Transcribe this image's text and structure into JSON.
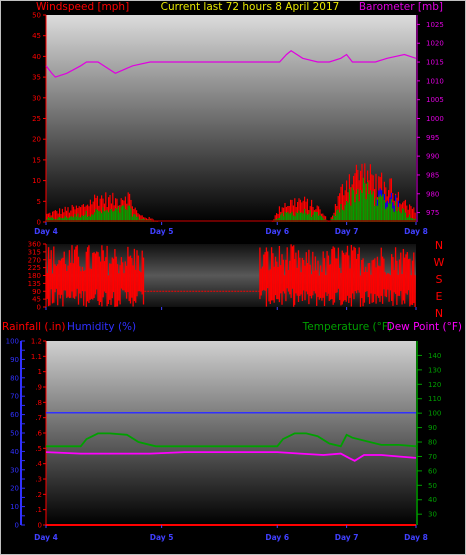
{
  "header": {
    "wind_label": "Windspeed [mph]",
    "title": "Current last 72 hours 8 April 2017",
    "baro_label": "Barometer [mb]"
  },
  "panel3_labels": {
    "rain": "Rainfall (.in)",
    "humidity": "Humidity (%)",
    "temp": "Temperature (°F)",
    "dew": "Dew Point (°F)"
  },
  "colors": {
    "frame": "#c0c0c0",
    "wind": "#ff0000",
    "windfill": "#8b0000",
    "gust_green": "#00a000",
    "blue": "#0000ff",
    "baro": "#e000e0",
    "title": "#e8e800",
    "temp": "#00a000",
    "dewpoint": "#ff00ff",
    "humidity": "#3030ff",
    "dir_text": "#ff0000"
  },
  "chart_data": [
    {
      "type": "area",
      "name": "wind-barometer",
      "title": "Current last 72 hours 8 April 2017",
      "ylabel_left": "Windspeed [mph]",
      "ylabel_right": "Barometer [mb]",
      "x_ticks": [
        "Day 4",
        "Day 5",
        "Day 6",
        "Day 7",
        "Day 8"
      ],
      "x_tick_pos": [
        0,
        1,
        2,
        2.6,
        3.2
      ],
      "ylim_left": [
        0,
        50
      ],
      "y_ticks_left": [
        0,
        5,
        10,
        15,
        20,
        25,
        30,
        35,
        40,
        45,
        50
      ],
      "ylim_right": [
        972.5,
        1027.5
      ],
      "y_ticks_right": [
        975,
        980,
        985,
        990,
        995,
        1000,
        1005,
        1010,
        1015,
        1020,
        1025
      ],
      "barometer": {
        "x": [
          0,
          0.05,
          0.08,
          0.18,
          0.3,
          0.35,
          0.45,
          0.6,
          0.75,
          0.9,
          1.2,
          1.5,
          1.75,
          2.02,
          2.08,
          2.12,
          2.22,
          2.35,
          2.45,
          2.55,
          2.6,
          2.65,
          2.75,
          2.85,
          2.95,
          3.1,
          3.2
        ],
        "values": [
          1014,
          1012,
          1011,
          1012,
          1014,
          1015,
          1015,
          1012,
          1014,
          1015,
          1015,
          1015,
          1015,
          1015,
          1017,
          1018,
          1016,
          1015,
          1015,
          1016,
          1017,
          1015,
          1015,
          1015,
          1016,
          1017,
          1016
        ]
      },
      "wind_peak": {
        "x": [
          0,
          0.1,
          0.3,
          0.45,
          0.6,
          0.7,
          0.8,
          1.0,
          1.5,
          1.95,
          2.05,
          2.2,
          2.35,
          2.45,
          2.6,
          2.65,
          2.75,
          2.85,
          2.95,
          3.05,
          3.12,
          3.2
        ],
        "values": [
          2,
          3,
          4,
          7,
          6,
          8,
          2,
          0,
          0,
          0,
          5,
          6,
          4,
          0,
          12,
          13,
          14,
          11,
          10,
          8,
          5,
          3
        ]
      },
      "wind_avg": {
        "x": [
          0,
          0.1,
          0.3,
          0.45,
          0.6,
          0.7,
          0.8,
          1.0,
          1.5,
          1.95,
          2.05,
          2.2,
          2.35,
          2.45,
          2.6,
          2.65,
          2.75,
          2.85,
          2.95,
          3.05,
          3.12,
          3.2
        ],
        "values": [
          1,
          1,
          2,
          3,
          3,
          4,
          1,
          0,
          0,
          0,
          2,
          3,
          2,
          0,
          6,
          8,
          9,
          7,
          6,
          4,
          2,
          1
        ]
      }
    },
    {
      "type": "bar",
      "name": "wind-direction",
      "x_ticks": [
        "Day 4",
        "Day 5",
        "Day 6",
        "Day 7",
        "Day 8"
      ],
      "ylim": [
        0,
        360
      ],
      "y_ticks": [
        0,
        45,
        90,
        135,
        180,
        225,
        270,
        315,
        360
      ],
      "direction_labels": [
        "N",
        "W",
        "S",
        "E",
        "N"
      ],
      "segments": [
        {
          "x_start": 0,
          "x_end": 0.85,
          "min": 0,
          "max": 360
        },
        {
          "x_start": 1.85,
          "x_end": 2.15,
          "min": 0,
          "max": 360
        },
        {
          "x_start": 2.15,
          "x_end": 2.45,
          "min": 0,
          "max": 330
        },
        {
          "x_start": 2.45,
          "x_end": 3.2,
          "min": 0,
          "max": 360
        }
      ],
      "calm_line": {
        "x_start": 0.85,
        "x_end": 1.85,
        "value": 90
      }
    },
    {
      "type": "line",
      "name": "rain-humidity-temperature",
      "ylabel_left_rain": "Rainfall (.in)",
      "ylabel_left_humidity": "Humidity (%)",
      "ylabel_right_temp": "Temperature (°F)",
      "ylabel_right_dew": "Dew Point (°F)",
      "x_ticks": [
        "Day 4",
        "Day 5",
        "Day 6",
        "Day 7",
        "Day 8"
      ],
      "ylim_rain": [
        0,
        1.2
      ],
      "y_ticks_rain": [
        0,
        0.1,
        0.2,
        0.3,
        0.4,
        0.5,
        0.6,
        0.7,
        0.8,
        0.9,
        1.0,
        1.1,
        1.2
      ],
      "y_tick_labels_rain": [
        "0",
        ".1",
        ".2",
        ".3",
        ".4",
        ".5",
        ".6",
        ".7",
        ".8",
        ".9",
        "1",
        "1.1",
        "1.2"
      ],
      "ylim_humidity": [
        0,
        100
      ],
      "y_ticks_humidity": [
        0,
        5,
        10,
        15,
        20,
        25,
        30,
        35,
        40,
        45,
        50,
        55,
        60,
        65,
        70,
        75,
        80,
        85,
        90,
        95,
        100
      ],
      "ylim_temp": [
        22.5,
        150
      ],
      "y_ticks_temp": [
        30,
        40,
        50,
        60,
        70,
        80,
        90,
        100,
        110,
        120,
        130,
        140
      ],
      "rainfall": {
        "x": [
          0,
          3.2
        ],
        "values": [
          0,
          0
        ]
      },
      "humidity": {
        "x": [
          0,
          3.2
        ],
        "values": [
          61,
          61
        ]
      },
      "temperature": {
        "x": [
          0,
          0.3,
          0.35,
          0.45,
          0.55,
          0.7,
          0.8,
          0.95,
          1.5,
          2.0,
          2.05,
          2.15,
          2.25,
          2.35,
          2.45,
          2.55,
          2.6,
          2.65,
          2.8,
          2.9,
          3.05,
          3.2
        ],
        "values": [
          77,
          77,
          82,
          86,
          86,
          85,
          80,
          77,
          77,
          77,
          82,
          86,
          86,
          84,
          79,
          77,
          85,
          83,
          80,
          78,
          78,
          77
        ]
      },
      "dewpoint": {
        "x": [
          0,
          0.3,
          0.6,
          0.9,
          1.2,
          1.6,
          2.0,
          2.2,
          2.4,
          2.55,
          2.62,
          2.67,
          2.75,
          2.9,
          3.05,
          3.2
        ],
        "values": [
          73,
          72,
          72,
          72,
          73,
          73,
          73,
          72,
          71,
          72,
          69,
          67,
          71,
          71,
          70,
          69
        ]
      }
    }
  ]
}
